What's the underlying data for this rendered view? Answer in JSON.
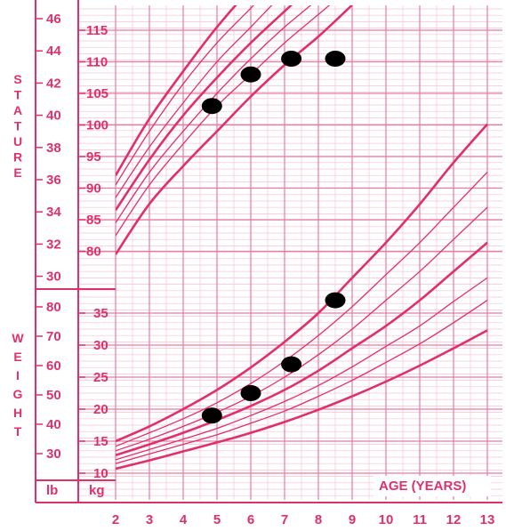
{
  "chart_data": {
    "type": "line",
    "title": "",
    "colors": {
      "line": "#e0306a",
      "grid": "#e97aa0",
      "gridMinor": "#f6c2d4",
      "background": "#ffffff",
      "point": "#000000"
    },
    "x_axis": {
      "label": "AGE (YEARS)",
      "range": [
        2,
        13
      ],
      "ticks": [
        "2",
        "3",
        "4",
        "5",
        "6",
        "7",
        "8",
        "9",
        "10",
        "11",
        "12",
        "13"
      ],
      "grid": true
    },
    "side_labels": {
      "stature": [
        "S",
        "T",
        "A",
        "T",
        "U",
        "R",
        "E"
      ],
      "weight": [
        "W",
        "E",
        "I",
        "G",
        "H",
        "T"
      ]
    },
    "stature_cm_ticks": [
      "115",
      "110",
      "105",
      "100",
      "95",
      "90",
      "85",
      "80"
    ],
    "stature_in_ticks": [
      "46",
      "44",
      "42",
      "40",
      "38",
      "36",
      "34",
      "32",
      "30"
    ],
    "weight_kg_ticks": [
      "35",
      "30",
      "25",
      "20",
      "15",
      "10"
    ],
    "weight_lb_ticks": [
      "80",
      "70",
      "60",
      "50",
      "40",
      "30"
    ],
    "unit_labels": {
      "lb": "lb",
      "kg": "kg"
    },
    "stature_percentiles": [
      {
        "name": "P97",
        "x": [
          2,
          3,
          4,
          5,
          6,
          7
        ],
        "values": [
          92,
          101,
          108.5,
          115.5,
          121.5,
          126
        ]
      },
      {
        "name": "P90",
        "x": [
          2,
          3,
          4,
          5,
          6,
          7
        ],
        "values": [
          90.5,
          99,
          106.5,
          113,
          118.5,
          124
        ]
      },
      {
        "name": "P75",
        "x": [
          2,
          3,
          4,
          5,
          6,
          7,
          8
        ],
        "values": [
          88.5,
          96.5,
          103.5,
          110,
          115.5,
          121,
          126
        ]
      },
      {
        "name": "P50",
        "x": [
          2,
          3,
          4,
          5,
          6,
          7,
          8
        ],
        "values": [
          86.5,
          94.5,
          101.5,
          107.5,
          113,
          118,
          123
        ]
      },
      {
        "name": "P25",
        "x": [
          2,
          3,
          4,
          5,
          6,
          7,
          8,
          9
        ],
        "values": [
          84.5,
          92.5,
          99,
          105,
          110.5,
          115.5,
          120,
          125
        ]
      },
      {
        "name": "P10",
        "x": [
          2,
          3,
          4,
          5,
          6,
          7,
          8,
          9
        ],
        "values": [
          82.5,
          90.5,
          97,
          103,
          108,
          113,
          117.5,
          122
        ]
      },
      {
        "name": "P3",
        "x": [
          2,
          3,
          4,
          5,
          6,
          7,
          8,
          9
        ],
        "values": [
          79.5,
          87.5,
          93.5,
          99,
          104.5,
          109.5,
          114,
          119
        ]
      }
    ],
    "weight_percentiles": [
      {
        "name": "P97",
        "x": [
          2,
          3,
          4,
          5,
          6,
          7,
          8,
          9,
          10,
          11,
          12,
          13
        ],
        "values": [
          15,
          17.3,
          20,
          23,
          26.5,
          30.5,
          35,
          40.5,
          46,
          52,
          58.5,
          64.5
        ]
      },
      {
        "name": "P90",
        "x": [
          2,
          3,
          4,
          5,
          6,
          7,
          8,
          9,
          10,
          11,
          12,
          13
        ],
        "values": [
          14.2,
          16.3,
          18.5,
          21,
          24,
          27.5,
          31.5,
          36,
          41,
          46,
          51.5,
          57
        ]
      },
      {
        "name": "P75",
        "x": [
          2,
          3,
          4,
          5,
          6,
          7,
          8,
          9,
          10,
          11,
          12,
          13
        ],
        "values": [
          13.5,
          15.3,
          17.3,
          19.5,
          22,
          25,
          28.5,
          32.5,
          37,
          41.5,
          46.5,
          51.5
        ]
      },
      {
        "name": "P50",
        "x": [
          2,
          3,
          4,
          5,
          6,
          7,
          8,
          9,
          10,
          11,
          12,
          13
        ],
        "values": [
          12.8,
          14.5,
          16.3,
          18.3,
          20.5,
          23,
          26,
          29.5,
          33,
          37,
          41.5,
          46
        ]
      },
      {
        "name": "P25",
        "x": [
          2,
          3,
          4,
          5,
          6,
          7,
          8,
          9,
          10,
          11,
          12,
          13
        ],
        "values": [
          12.1,
          13.7,
          15.3,
          17,
          19,
          21.2,
          23.7,
          26.6,
          29.8,
          33,
          36.8,
          40.5
        ]
      },
      {
        "name": "P10",
        "x": [
          2,
          3,
          4,
          5,
          6,
          7,
          8,
          9,
          10,
          11,
          12,
          13
        ],
        "values": [
          11.5,
          13,
          14.5,
          16,
          17.8,
          19.7,
          22,
          24.5,
          27.3,
          30.2,
          33.5,
          37
        ]
      },
      {
        "name": "P3",
        "x": [
          2,
          3,
          4,
          5,
          6,
          7,
          8,
          9,
          10,
          11,
          12,
          13
        ],
        "values": [
          10.7,
          12,
          13.4,
          14.8,
          16.3,
          18,
          19.9,
          22,
          24.3,
          26.8,
          29.5,
          32.3
        ]
      }
    ],
    "plotted_points": {
      "stature": {
        "x": [
          4.85,
          6,
          7.2,
          8.5
        ],
        "values": [
          103,
          108,
          110.5,
          110.5
        ]
      },
      "weight": {
        "x": [
          4.85,
          6,
          7.2,
          8.5
        ],
        "values": [
          19,
          22.5,
          27,
          37
        ]
      }
    }
  }
}
